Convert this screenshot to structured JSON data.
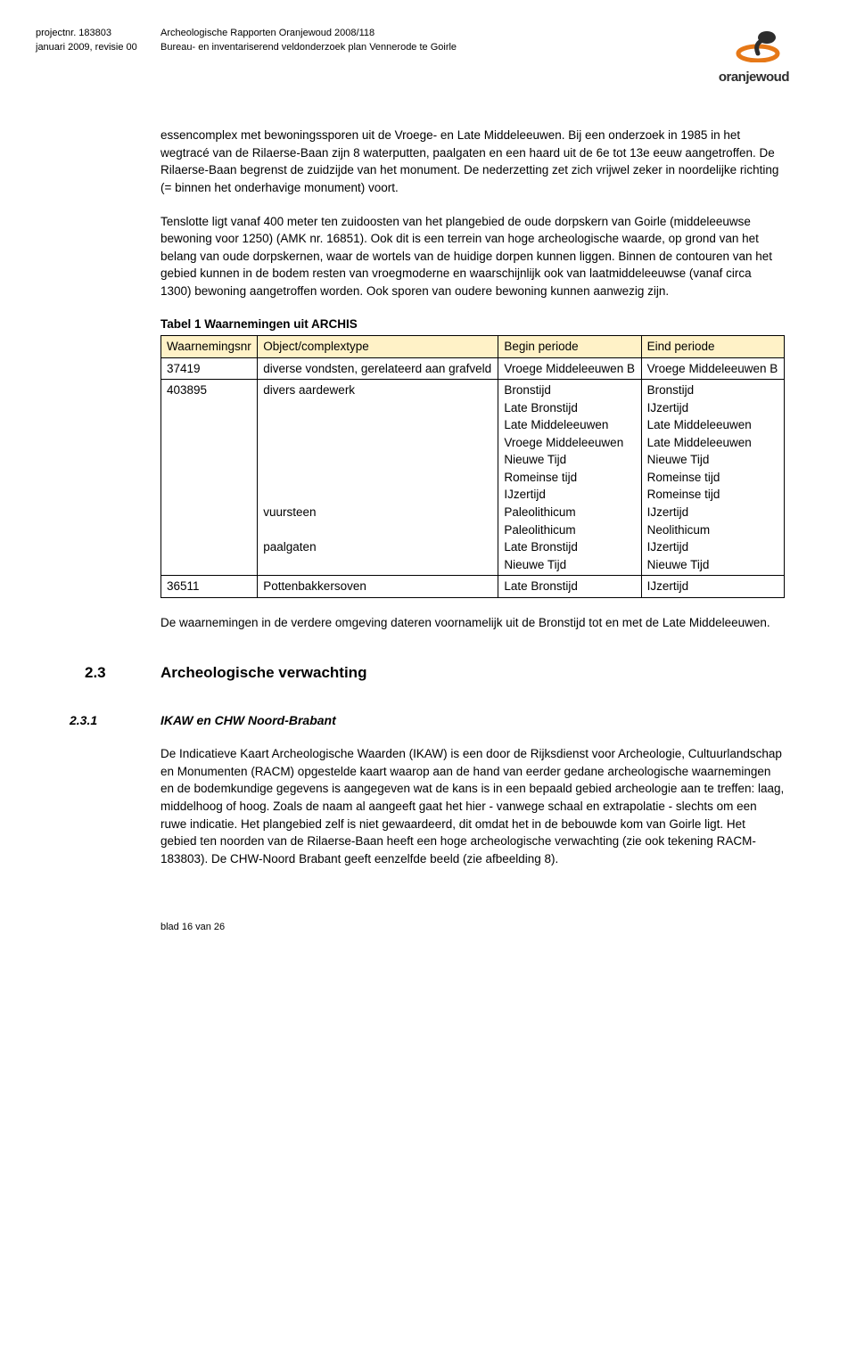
{
  "header": {
    "project_nr": "projectnr. 183803",
    "revision": "januari 2009, revisie 00",
    "doc_title1": "Archeologische Rapporten Oranjewoud 2008/118",
    "doc_title2": "Bureau- en inventariserend veldonderzoek plan Vennerode te Goirle",
    "logo_text": "oranjewoud",
    "logo_color": "#e67817"
  },
  "paragraphs": {
    "p1": "essencomplex met bewoningssporen uit de Vroege- en Late Middeleeuwen. Bij een onderzoek in 1985 in het wegtracé van de Rilaerse-Baan zijn 8 waterputten, paalgaten en een haard uit de 6e tot 13e eeuw aangetroffen. De Rilaerse-Baan begrenst de zuidzijde van het monument. De nederzetting zet zich vrijwel zeker in noordelijke richting (= binnen het onderhavige monument) voort.",
    "p2": "Tenslotte ligt vanaf 400 meter ten zuidoosten van het plangebied de oude dorpskern van Goirle (middeleeuwse bewoning voor 1250) (AMK nr. 16851). Ook dit is een terrein van hoge archeologische waarde, op grond van het belang van oude dorpskernen, waar de wortels van de huidige dorpen kunnen liggen. Binnen de contouren van het gebied kunnen in de bodem resten van vroegmoderne en waarschijnlijk ook van laatmiddeleeuwse (vanaf circa 1300) bewoning aangetroffen worden. Ook sporen van oudere bewoning kunnen aanwezig zijn.",
    "after_table": "De waarnemingen in de verdere omgeving dateren voornamelijk uit de Bronstijd tot en met de Late Middeleeuwen.",
    "p_ikaw": "De Indicatieve Kaart Archeologische Waarden (IKAW) is een door de Rijksdienst voor Archeologie, Cultuurlandschap en Monumenten (RACM) opgestelde kaart waarop aan de hand van eerder gedane archeologische waarnemingen en de bodemkundige gegevens is aangegeven wat de kans is in een bepaald gebied archeologie aan te treffen: laag, middelhoog of hoog. Zoals de naam al aangeeft gaat het hier - vanwege schaal en extrapolatie - slechts om een ruwe indicatie. Het plangebied zelf is niet gewaardeerd, dit omdat het in de bebouwde kom van Goirle ligt. Het gebied ten noorden van de Rilaerse-Baan heeft een hoge archeologische verwachting (zie ook tekening RACM-183803). De CHW-Noord Brabant geeft eenzelfde beeld (zie afbeelding 8)."
  },
  "table": {
    "title": "Tabel 1   Waarnemingen uit ARCHIS",
    "header_bg": "#fff2c7",
    "columns": [
      "Waarnemingsnr",
      "Object/complextype",
      "Begin periode",
      "Eind periode"
    ],
    "rows": [
      {
        "nr": "37419",
        "object": "diverse vondsten, gerelateerd aan grafveld",
        "begin": "Vroege Middeleeuwen B",
        "eind": "Vroege Middeleeuwen B"
      },
      {
        "nr": "403895",
        "object": "divers aardewerk\n\n\n\n\n\n\nvuursteen\n\npaalgaten",
        "begin": "Bronstijd\nLate Bronstijd\nLate Middeleeuwen\nVroege Middeleeuwen\nNieuwe Tijd\nRomeinse tijd\nIJzertijd\nPaleolithicum\nPaleolithicum\nLate Bronstijd\nNieuwe Tijd",
        "eind": "Bronstijd\nIJzertijd\nLate Middeleeuwen\nLate Middeleeuwen\nNieuwe Tijd\nRomeinse tijd\nRomeinse tijd\nIJzertijd\nNeolithicum\nIJzertijd\nNieuwe Tijd"
      },
      {
        "nr": "36511",
        "object": "Pottenbakkersoven",
        "begin": "Late Bronstijd",
        "eind": "IJzertijd"
      }
    ]
  },
  "sections": {
    "s2_3_num": "2.3",
    "s2_3_title": "Archeologische verwachting",
    "s2_3_1_num": "2.3.1",
    "s2_3_1_title": "IKAW en CHW Noord-Brabant"
  },
  "footer": {
    "page": "blad 16 van 26"
  }
}
